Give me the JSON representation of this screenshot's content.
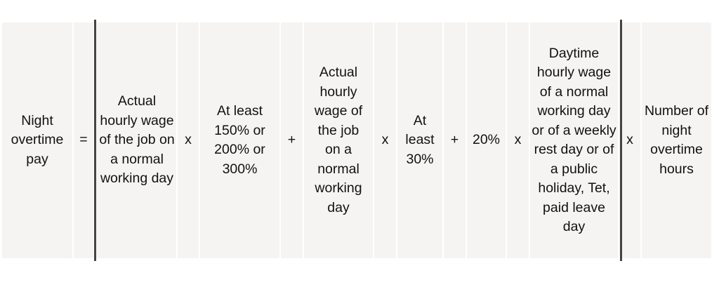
{
  "formula": {
    "cells": [
      {
        "text": "Night overtime pay"
      },
      {
        "text": "="
      },
      {
        "text": "Actual hourly wage of the job on a normal working day"
      },
      {
        "text": "x"
      },
      {
        "text": "At least 150% or 200% or 300%"
      },
      {
        "text": "+"
      },
      {
        "text": "Actual hourly wage of the job on a normal working day"
      },
      {
        "text": "x"
      },
      {
        "text": "At least 30%"
      },
      {
        "text": "+"
      },
      {
        "text": "20%"
      },
      {
        "text": "x"
      },
      {
        "text": "Daytime hourly wage of a normal working day or of a weekly rest day or of a public holiday, Tet, paid leave day"
      },
      {
        "text": "x"
      },
      {
        "text": "Number of night overtime hours"
      }
    ]
  },
  "colors": {
    "cell_background": "#f5f4f3",
    "divider": "#444444"
  }
}
